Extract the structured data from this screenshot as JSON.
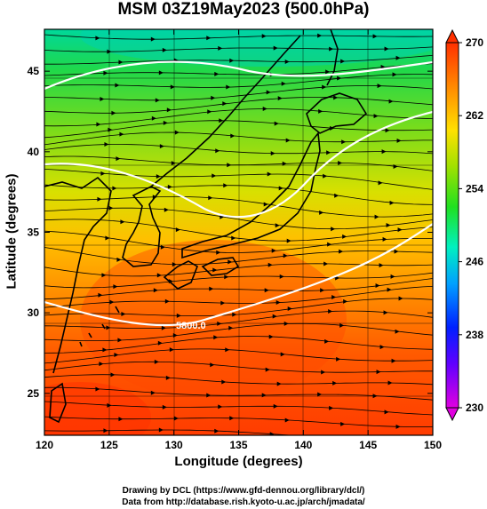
{
  "title": "MSM 03Z19May2023 (500.0hPa)",
  "x_axis": {
    "label": "Longitude (degrees)",
    "ticks": [
      "120",
      "125",
      "130",
      "135",
      "140",
      "145",
      "150"
    ],
    "range": [
      120,
      150
    ]
  },
  "y_axis": {
    "label": "Latitude  (degrees)",
    "ticks": [
      "25",
      "30",
      "35",
      "40",
      "45"
    ],
    "range": [
      22.4,
      47.6
    ]
  },
  "colorbar": {
    "ticks": [
      "270",
      "262",
      "254",
      "246",
      "238",
      "230"
    ],
    "range": [
      230,
      270
    ],
    "colors": [
      "#ff00ff",
      "#0000ff",
      "#00bfff",
      "#00ff80",
      "#00e000",
      "#ffff00",
      "#ff8000",
      "#ff2000"
    ]
  },
  "contour_label": "5800.0",
  "credits": {
    "line1": "Drawing by DCL (https://www.gfd-dennou.org/library/dcl/)",
    "line2": "Data from http://database.rish.kyoto-u.ac.jp/arch/jmadata/"
  }
}
